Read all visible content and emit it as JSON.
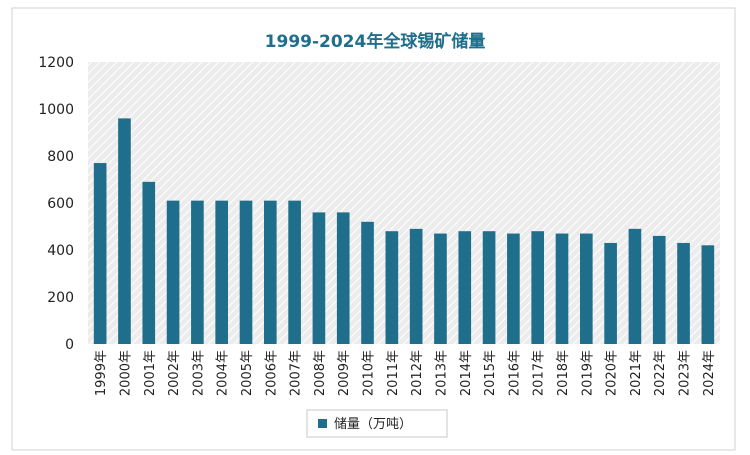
{
  "chart_data": {
    "type": "bar",
    "title": "1999-2024年全球锡矿储量",
    "xlabel": "",
    "ylabel": "",
    "ylim": [
      0,
      1200
    ],
    "yticks": [
      0,
      200,
      400,
      600,
      800,
      1000,
      1200
    ],
    "grid": false,
    "legend_position": "bottom",
    "categories": [
      "1999年",
      "2000年",
      "2001年",
      "2002年",
      "2003年",
      "2004年",
      "2005年",
      "2006年",
      "2007年",
      "2008年",
      "2009年",
      "2010年",
      "2011年",
      "2012年",
      "2013年",
      "2014年",
      "2015年",
      "2016年",
      "2017年",
      "2018年",
      "2019年",
      "2020年",
      "2021年",
      "2022年",
      "2023年",
      "2024年"
    ],
    "series": [
      {
        "name": "储量（万吨）",
        "color": "#1f6e8c",
        "values": [
          770,
          960,
          690,
          610,
          610,
          610,
          610,
          610,
          610,
          560,
          560,
          520,
          480,
          490,
          470,
          480,
          480,
          470,
          480,
          470,
          470,
          430,
          490,
          460,
          430,
          420
        ]
      }
    ]
  },
  "colors": {
    "bar": "#1f6e8c",
    "title": "#1f6e8c",
    "plot_background": "#eeeeee",
    "hatch": "#ffffff"
  }
}
